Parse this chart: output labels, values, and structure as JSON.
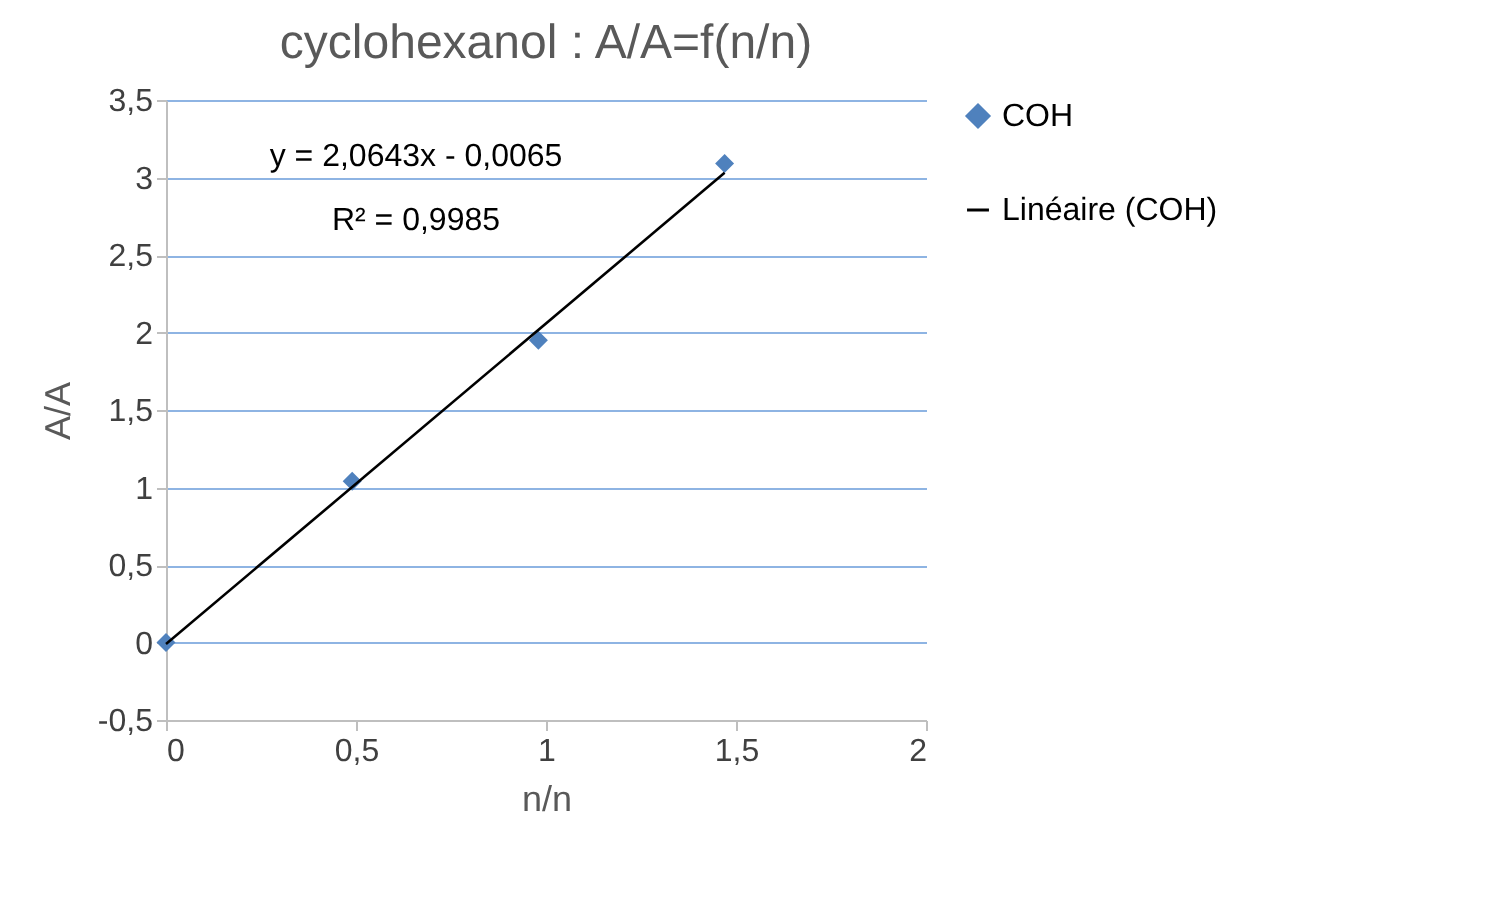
{
  "chart_data": {
    "type": "scatter",
    "title": "cyclohexanol : A/A=f(n/n)",
    "xlabel": "n/n",
    "ylabel": "A/A",
    "x": [
      0,
      0.49,
      0.98,
      1.47
    ],
    "series": [
      {
        "name": "COH",
        "color": "#4f81bd",
        "marker": "diamond",
        "values": [
          0,
          1.04,
          1.95,
          3.09
        ]
      },
      {
        "name": "Linéaire (COH)",
        "type": "line",
        "color": "#000000",
        "x": [
          0,
          1.47
        ],
        "values": [
          -0.01,
          3.03
        ]
      }
    ],
    "annotations": [
      "y = 2,0643x - 0,0065",
      "R² = 0,9985"
    ],
    "xlim": [
      0,
      2
    ],
    "xticks": [
      0,
      {
        "value": 0.5,
        "label": "0,5"
      },
      1,
      {
        "value": 1.5,
        "label": "1,5"
      },
      2
    ],
    "ylim": [
      -0.5,
      3.5
    ],
    "yticks": [
      {
        "value": -0.5,
        "label": "-0,5"
      },
      0,
      {
        "value": 0.5,
        "label": "0,5"
      },
      1,
      {
        "value": 1.5,
        "label": "1,5"
      },
      2,
      {
        "value": 2.5,
        "label": "2,5"
      },
      3,
      {
        "value": 3.5,
        "label": "3,5"
      }
    ],
    "grid": "y",
    "legend": "right"
  }
}
